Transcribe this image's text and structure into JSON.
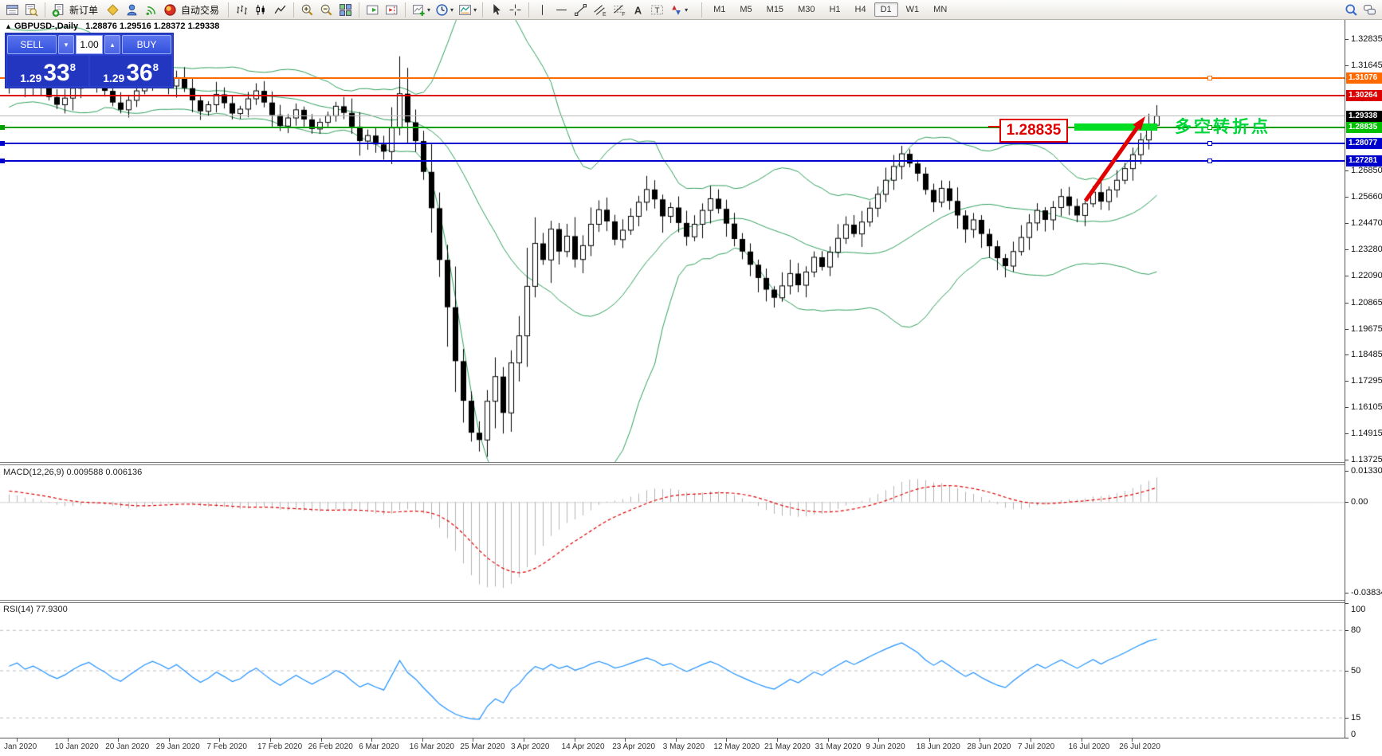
{
  "toolbar": {
    "new_order_label": "新订单",
    "autotrading_label": "自动交易",
    "dropdown_glyph": "▾",
    "timeframes": [
      "M1",
      "M5",
      "M15",
      "M30",
      "H1",
      "H4",
      "D1",
      "W1",
      "MN"
    ],
    "active_timeframe": "D1",
    "tool_glyphs": {
      "channel": "E",
      "fibo": "F",
      "text": "A",
      "label": "T"
    },
    "icons": [
      "terminal-panel-icon",
      "data-window-icon",
      "new-order-icon",
      "metaeditor-icon",
      "expert-advisor-icon",
      "signals-icon",
      "autotrading-icon",
      "bar-chart-icon",
      "candlestick-chart-icon",
      "line-chart-icon",
      "zoom-in-icon",
      "zoom-out-icon",
      "tile-windows-icon",
      "auto-scroll-icon",
      "chart-shift-icon",
      "indicators-icon",
      "periods-icon",
      "templates-icon",
      "cursor-icon",
      "crosshair-icon",
      "vertical-line-icon",
      "horizontal-line-icon",
      "trendline-icon",
      "channel-icon",
      "fibonacci-icon",
      "text-icon",
      "text-label-icon",
      "arrows-icon",
      "search-icon",
      "chat-icon"
    ]
  },
  "chart": {
    "collapse_glyph": "▲",
    "symbol_period": "GBPUSD-,Daily",
    "ohlc_text": "1.28876 1.29516 1.28372 1.29338"
  },
  "one_click": {
    "sell_label": "SELL",
    "buy_label": "BUY",
    "volume": "1.00",
    "spin_down": "▾",
    "spin_up": "▴",
    "sell_price": {
      "prefix": "1.29",
      "big": "33",
      "sup": "8"
    },
    "buy_price": {
      "prefix": "1.29",
      "big": "36",
      "sup": "8"
    }
  },
  "annotations": {
    "price_box_text": "1.28835",
    "note_text": "多空转折点"
  },
  "indicators": {
    "macd_label": "MACD(12,26,9) 0.009588 0.006136",
    "rsi_label": "RSI(14) 77.9300"
  },
  "chart_data": {
    "type": "candlestick",
    "symbol": "GBPUSD-",
    "period": "Daily",
    "ylim": [
      1.13725,
      1.32835
    ],
    "grid": false,
    "bollinger": {
      "period": 20,
      "deviation": 2
    },
    "pre_closes": [
      1.2988,
      1.3012,
      1.3045,
      1.3078,
      1.3102,
      1.3068,
      1.3035,
      1.3095,
      1.3152,
      1.3205,
      1.3258,
      1.3302,
      1.3345,
      1.3262,
      1.3198,
      1.3152,
      1.3118,
      1.3165,
      1.3208,
      1.3155
    ],
    "closes": [
      1.3092,
      1.3125,
      1.307,
      1.31,
      1.3065,
      1.302,
      1.2985,
      1.3015,
      1.306,
      1.3098,
      1.3125,
      1.3085,
      1.3048,
      1.2995,
      1.2962,
      1.3005,
      1.3048,
      1.3095,
      1.3128,
      1.3102,
      1.307,
      1.3108,
      1.306,
      1.3005,
      1.2955,
      1.2985,
      1.3032,
      1.2992,
      1.2945,
      1.2965,
      1.3012,
      1.3048,
      1.2995,
      1.2938,
      1.2888,
      1.2925,
      1.2962,
      1.2918,
      1.2875,
      1.2905,
      1.2935,
      1.2978,
      1.2948,
      1.2885,
      1.282,
      1.2845,
      1.2805,
      1.2772,
      1.288,
      1.3035,
      1.2905,
      1.282,
      1.268,
      1.2515,
      1.228,
      1.2065,
      1.182,
      1.164,
      1.1495,
      1.1462,
      1.1638,
      1.175,
      1.1585,
      1.1812,
      1.1935,
      1.216,
      1.2355,
      1.228,
      1.242,
      1.2318,
      1.2388,
      1.2282,
      1.2345,
      1.2442,
      1.2508,
      1.2455,
      1.2372,
      1.2415,
      1.2478,
      1.2542,
      1.26,
      1.2555,
      1.2478,
      1.2518,
      1.2448,
      1.2385,
      1.2442,
      1.2505,
      1.2558,
      1.2512,
      1.2445,
      1.2375,
      1.2318,
      1.2258,
      1.2198,
      1.2145,
      1.2108,
      1.2162,
      1.2218,
      1.2165,
      1.2225,
      1.2292,
      1.2248,
      1.2315,
      1.2378,
      1.244,
      1.2398,
      1.2452,
      1.2515,
      1.2578,
      1.2642,
      1.2705,
      1.2762,
      1.2718,
      1.2672,
      1.2598,
      1.2542,
      1.2605,
      1.2548,
      1.2482,
      1.2418,
      1.2462,
      1.2398,
      1.2342,
      1.2288,
      1.2252,
      1.2318,
      1.2382,
      1.2448,
      1.2505,
      1.2462,
      1.2518,
      1.2568,
      1.2525,
      1.2482,
      1.2535,
      1.2588,
      1.2545,
      1.2598,
      1.2642,
      1.2695,
      1.2758,
      1.2825,
      1.2892,
      1.29338
    ],
    "spikes": [
      {
        "i": 1,
        "high": 1.3172
      },
      {
        "i": 49,
        "high": 1.3205
      },
      {
        "i": 59,
        "low": 1.1412
      },
      {
        "i": 144,
        "high": 1.2958
      }
    ],
    "hlines": [
      {
        "price": 1.31076,
        "label": "1.31076",
        "line": "#ff6a00",
        "tag": "#ff6a00",
        "thick": 2,
        "right_handle": true,
        "left_handle": false
      },
      {
        "price": 1.30264,
        "label": "1.30264",
        "line": "#dd0000",
        "tag": "#dd0000",
        "thick": 2,
        "right_handle": false,
        "left_handle": false
      },
      {
        "price": 1.29338,
        "label": "1.29338",
        "line": "#b9b9b9",
        "tag": "#000000",
        "thick": 1,
        "right_handle": false,
        "left_handle": false
      },
      {
        "price": 1.28835,
        "label": "1.28835",
        "line": "#00a000",
        "tag": "#00c000",
        "thick": 2,
        "right_handle": true,
        "left_handle": true
      },
      {
        "price": 1.28077,
        "label": "1.28077",
        "line": "#0000cc",
        "tag": "#0000cc",
        "thick": 2,
        "right_handle": true,
        "left_handle": true
      },
      {
        "price": 1.27281,
        "label": "1.27281",
        "line": "#0000cc",
        "tag": "#0000cc",
        "thick": 2,
        "right_handle": true,
        "left_handle": true
      }
    ],
    "price_ticks": [
      "1.32835",
      "1.31645",
      "1.26850",
      "1.25660",
      "1.24470",
      "1.23280",
      "1.22090",
      "1.20865",
      "1.19675",
      "1.18485",
      "1.17295",
      "1.16105",
      "1.14915",
      "1.13725"
    ],
    "x_labels": [
      "Jan 2020",
      "10 Jan 2020",
      "20 Jan 2020",
      "29 Jan 2020",
      "7 Feb 2020",
      "17 Feb 2020",
      "26 Feb 2020",
      "6 Mar 2020",
      "16 Mar 2020",
      "25 Mar 2020",
      "3 Apr 2020",
      "14 Apr 2020",
      "23 Apr 2020",
      "3 May 2020",
      "12 May 2020",
      "21 May 2020",
      "31 May 2020",
      "9 Jun 2020",
      "18 Jun 2020",
      "28 Jun 2020",
      "7 Jul 2020",
      "16 Jul 2020",
      "26 Jul 2020"
    ],
    "macd": {
      "params": [
        12,
        26,
        9
      ],
      "current": [
        0.009588,
        0.006136
      ],
      "ylim_top": 0.0156,
      "ylim_bottom": -0.0413,
      "axis": [
        {
          "v": 0.013301,
          "t": "0.013301"
        },
        {
          "v": 0,
          "t": "0.00"
        },
        {
          "v": -0.038343,
          "t": "-0.038343"
        }
      ]
    },
    "rsi": {
      "period": 14,
      "current": 77.93,
      "levels": [
        80,
        50,
        15
      ],
      "axis": [
        {
          "v": 100,
          "t": "100"
        },
        {
          "v": 80,
          "t": "80"
        },
        {
          "v": 50,
          "t": "50"
        },
        {
          "v": 15,
          "t": "15"
        },
        {
          "v": 0,
          "t": "0"
        }
      ]
    },
    "colors": {
      "band": "#2e9e5b",
      "bull": "#ffffff",
      "bear": "#000000",
      "wick": "#000000",
      "macd_hist": "#b3b3b3",
      "macd_signal": "#e00000",
      "rsi_line": "#1e90ff",
      "highlight": "#00dd22",
      "arrow": "#e30000",
      "note": "#00d63c",
      "box": "#e00000"
    }
  }
}
